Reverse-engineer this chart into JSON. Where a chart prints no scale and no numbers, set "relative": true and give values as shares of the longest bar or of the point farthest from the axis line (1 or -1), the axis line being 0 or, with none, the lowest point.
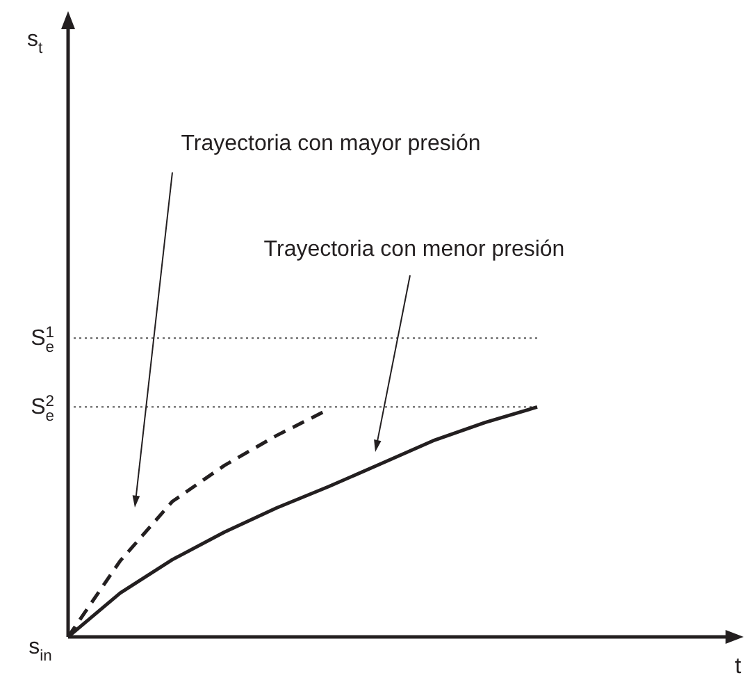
{
  "chart_data": {
    "type": "line",
    "relative": true,
    "legend": false,
    "marker": "none",
    "categories": [
      null,
      null,
      null,
      null,
      null,
      null,
      null,
      null,
      null,
      null
    ],
    "series": [
      {
        "color": "#231f20",
        "line_style": "dashed",
        "values": [
          0,
          0.331,
          0.589,
          0.746,
          0.876,
          0.99,
          null,
          null,
          null,
          null
        ]
      },
      {
        "color": "#231f20",
        "line_style": "solid",
        "values": [
          0,
          0.191,
          0.336,
          0.456,
          0.561,
          0.654,
          0.753,
          0.853,
          0.933,
          1.0
        ]
      }
    ],
    "ref_lines": [
      {
        "axis": "y",
        "value": 1.3,
        "label": "S$_{e}$$^{1}$",
        "color": "#555555",
        "line_style": "dotted"
      },
      {
        "axis": "y",
        "value": 1.0,
        "label": "S$_{e}$$^{2}$",
        "color": "#555555",
        "line_style": "dotted"
      }
    ],
    "annotations": [
      "Trayectoria con mayor presión",
      "Trayectoria con menor presión",
      "s$_{in}$",
      "s$_{t}$",
      "t"
    ]
  }
}
